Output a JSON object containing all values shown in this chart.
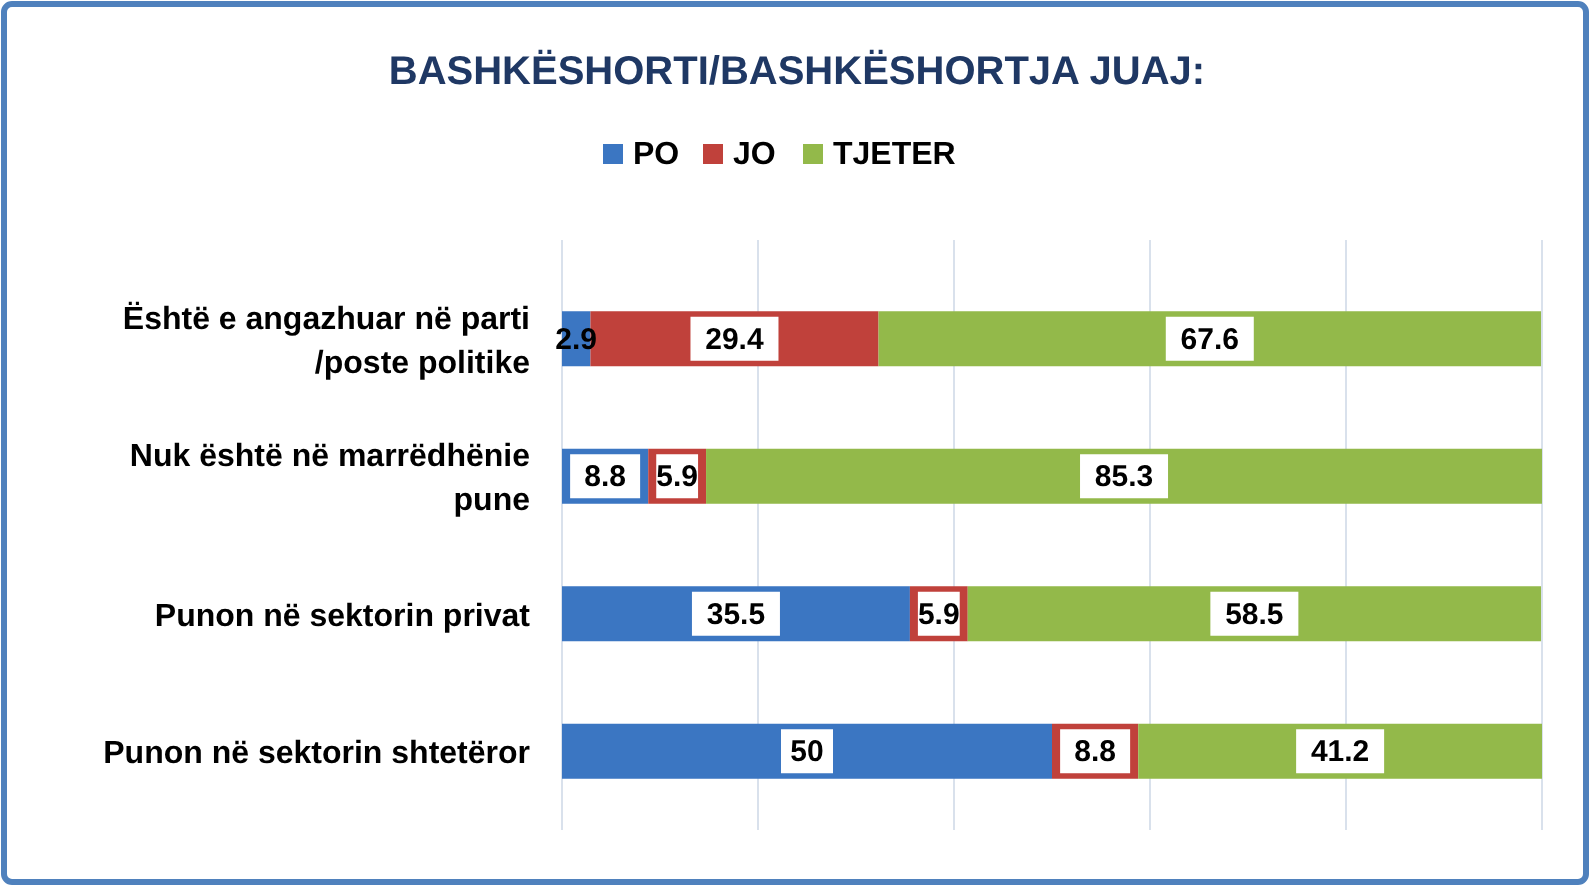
{
  "chart_data": {
    "type": "bar",
    "orientation": "horizontal",
    "stacked": true,
    "title": "BASHKËSHORTI/BASHKËSHORTJA JUAJ:",
    "categories": [
      "Është e angazhuar në parti /poste politike",
      "Nuk është në marrëdhënie pune",
      "Punon në sektorin privat",
      "Punon në sektorin shtetëror"
    ],
    "series": [
      {
        "name": "PO",
        "color": "#3b76c2",
        "values": [
          2.9,
          8.8,
          35.5,
          50
        ]
      },
      {
        "name": "JO",
        "color": "#c0413b",
        "values": [
          29.4,
          5.9,
          5.9,
          8.8
        ]
      },
      {
        "name": "TJETER",
        "color": "#93b94a",
        "values": [
          67.6,
          85.3,
          58.5,
          41.2
        ]
      }
    ],
    "xlim": [
      0,
      100
    ],
    "xticks": [
      {
        "value": 0,
        "label": null
      },
      {
        "value": 20,
        "label": null
      },
      {
        "value": 40,
        "label": null
      },
      {
        "value": 60,
        "label": null
      },
      {
        "value": 80,
        "label": null
      },
      {
        "value": 100,
        "label": null
      }
    ],
    "tick_labels": "y",
    "grid": "x",
    "legend": "top",
    "data_labels": true
  }
}
